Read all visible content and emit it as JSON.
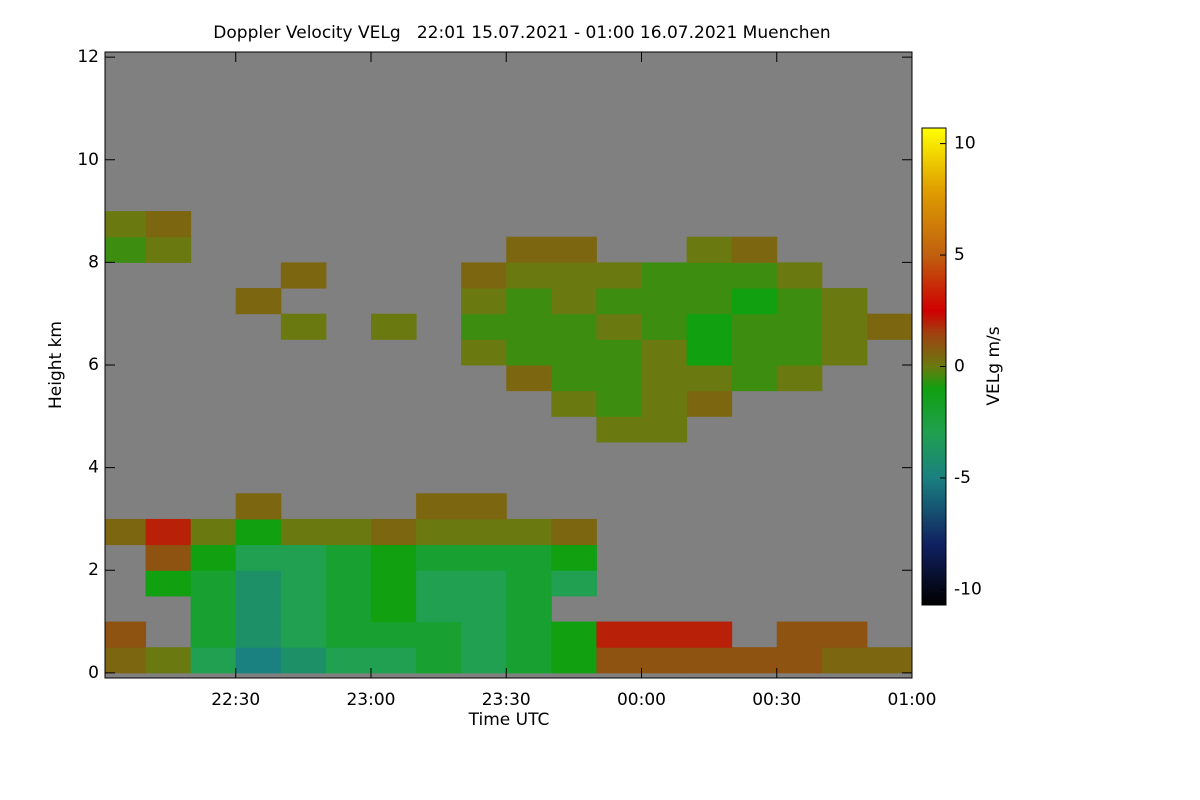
{
  "chart_data": {
    "type": "heatmap",
    "title": "Doppler Velocity VELg   22:01 15.07.2021 - 01:00 16.07.2021 Muenchen",
    "xlabel": "Time UTC",
    "ylabel": "Height km",
    "colorbar_label": "VELg m/s",
    "xlim": [
      22.0167,
      25.0
    ],
    "xticks": [
      {
        "value": 22.5,
        "label": "22:30"
      },
      {
        "value": 23.0,
        "label": "23:00"
      },
      {
        "value": 23.5,
        "label": "23:30"
      },
      {
        "value": 24.0,
        "label": "00:00"
      },
      {
        "value": 24.5,
        "label": "00:30"
      },
      {
        "value": 25.0,
        "label": "01:00"
      }
    ],
    "ylim": [
      -0.1,
      12.1
    ],
    "yticks": [
      0,
      2,
      4,
      6,
      8,
      10,
      12
    ],
    "clim": [
      -10.7,
      10.7
    ],
    "cticks": [
      -10,
      -5,
      0,
      5,
      10
    ],
    "background": "#808080",
    "colormap": [
      {
        "value": -10.7,
        "color": "#000000"
      },
      {
        "value": -8,
        "color": "#102060"
      },
      {
        "value": -5,
        "color": "#1a8080"
      },
      {
        "value": -3,
        "color": "#20a050"
      },
      {
        "value": -1,
        "color": "#10a010"
      },
      {
        "value": 0,
        "color": "#6a7a10"
      },
      {
        "value": 1.5,
        "color": "#a04010"
      },
      {
        "value": 2.5,
        "color": "#d00000"
      },
      {
        "value": 5,
        "color": "#c06010"
      },
      {
        "value": 8,
        "color": "#e0a000"
      },
      {
        "value": 10.7,
        "color": "#ffff00"
      }
    ],
    "xbins": [
      22.0167,
      22.1667,
      22.3333,
      22.5,
      22.6667,
      22.8333,
      23.0,
      23.1667,
      23.3333,
      23.5,
      23.6667,
      23.8333,
      24.0,
      24.1667,
      24.3333,
      24.5,
      24.6667,
      24.8333,
      25.0
    ],
    "ybins": [
      0,
      0.5,
      1,
      1.5,
      2,
      2.5,
      3,
      3.5,
      4,
      4.5,
      5,
      5.5,
      6,
      6.5,
      7,
      7.5,
      8,
      8.5,
      9
    ],
    "z": [
      [
        0.5,
        0,
        -3,
        -5,
        -4,
        -3,
        -3,
        -2,
        -3,
        -2,
        -1,
        1,
        1,
        1,
        1,
        1,
        0.5,
        0.5
      ],
      [
        1,
        null,
        -2,
        -4,
        -3,
        -2,
        -2,
        -2,
        -3,
        -2,
        -1,
        2,
        2,
        2,
        null,
        1,
        1,
        null
      ],
      [
        null,
        null,
        -2,
        -4,
        -3,
        -2,
        -1,
        -3,
        -3,
        -2,
        null,
        null,
        null,
        null,
        null,
        null,
        null,
        null
      ],
      [
        null,
        -1,
        -2,
        -4,
        -3,
        -2,
        -1,
        -3,
        -3,
        -2,
        -3,
        null,
        null,
        null,
        null,
        null,
        null,
        null
      ],
      [
        null,
        1,
        -1,
        -3,
        -3,
        -2,
        -1,
        -2,
        -2,
        -2,
        -1,
        null,
        null,
        null,
        null,
        null,
        null,
        null
      ],
      [
        0.5,
        2,
        0,
        -1,
        0,
        0,
        0.5,
        0,
        0,
        0,
        0.5,
        null,
        null,
        null,
        null,
        null,
        null,
        null
      ],
      [
        null,
        null,
        null,
        0.5,
        null,
        null,
        null,
        0.5,
        0.5,
        null,
        null,
        null,
        null,
        null,
        null,
        null,
        null,
        null
      ],
      [
        null,
        null,
        null,
        null,
        null,
        null,
        null,
        null,
        null,
        null,
        null,
        null,
        null,
        null,
        null,
        null,
        null,
        null
      ],
      [
        null,
        null,
        null,
        null,
        null,
        null,
        null,
        null,
        null,
        null,
        null,
        null,
        null,
        null,
        null,
        null,
        null,
        null
      ],
      [
        null,
        null,
        null,
        null,
        null,
        null,
        null,
        null,
        null,
        null,
        null,
        0,
        0,
        null,
        null,
        null,
        null,
        null
      ],
      [
        null,
        null,
        null,
        null,
        null,
        null,
        null,
        null,
        null,
        null,
        0,
        -0.5,
        0,
        0.5,
        null,
        null,
        null,
        null
      ],
      [
        null,
        null,
        null,
        null,
        null,
        null,
        null,
        null,
        null,
        0.5,
        -0.5,
        -0.5,
        0,
        0,
        -0.5,
        0,
        null,
        null
      ],
      [
        null,
        null,
        null,
        null,
        null,
        null,
        null,
        null,
        0,
        -0.5,
        -0.5,
        -0.5,
        0,
        -1,
        -0.5,
        -0.5,
        0,
        null
      ],
      [
        null,
        null,
        null,
        null,
        0,
        null,
        0,
        null,
        -0.5,
        -0.5,
        -0.5,
        0,
        -0.5,
        -1,
        -0.5,
        -0.5,
        0,
        0.5
      ],
      [
        null,
        null,
        null,
        0.5,
        null,
        null,
        null,
        null,
        0,
        -0.5,
        0,
        -0.5,
        -0.5,
        -0.5,
        -1,
        -0.5,
        0,
        null
      ],
      [
        null,
        null,
        null,
        null,
        0.5,
        null,
        null,
        null,
        0.5,
        0,
        0,
        0,
        -0.5,
        -0.5,
        -0.5,
        0,
        null,
        null
      ],
      [
        -0.5,
        0,
        null,
        null,
        null,
        null,
        null,
        null,
        null,
        0.5,
        0.5,
        null,
        null,
        0,
        0.5,
        null,
        null,
        null
      ],
      [
        0,
        0.5,
        null,
        null,
        null,
        null,
        null,
        null,
        null,
        null,
        null,
        null,
        null,
        null,
        null,
        null,
        null,
        null
      ]
    ]
  }
}
